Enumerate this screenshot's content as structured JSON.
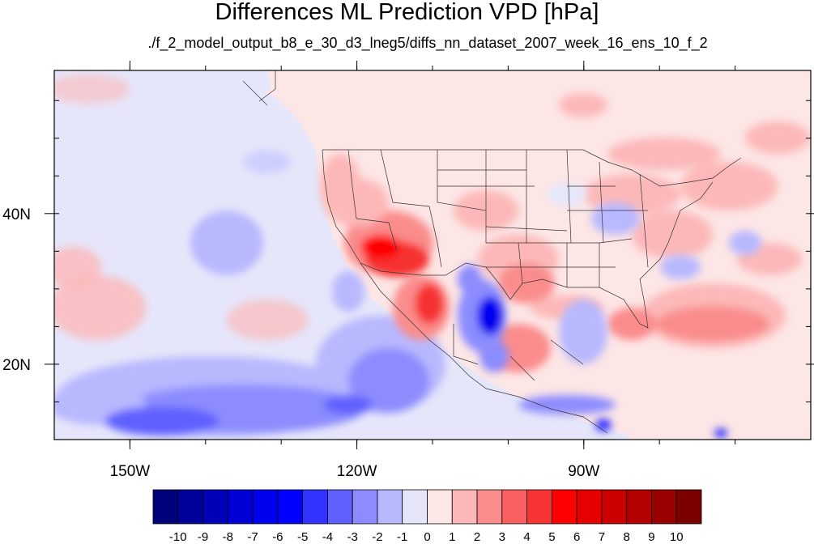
{
  "title": "Differences ML Prediction VPD [hPa]",
  "subtitle": "./f_2_model_output_b8_e_30_d3_lneg5/diffs_nn_dataset_2007_week_16_ens_10_f_2",
  "map": {
    "lon_range": [
      -160,
      -60
    ],
    "lat_range": [
      10,
      59
    ],
    "lon_ticks": [
      {
        "value": -150,
        "label": "150W"
      },
      {
        "value": -120,
        "label": "120W"
      },
      {
        "value": -90,
        "label": "90W"
      }
    ],
    "lat_ticks": [
      {
        "value": 40,
        "label": "40N"
      },
      {
        "value": 20,
        "label": "20N"
      }
    ],
    "background_color": "#fde6e6"
  },
  "colorbar": {
    "labels": [
      "-10",
      "-9",
      "-8",
      "-7",
      "-6",
      "-5",
      "-4",
      "-3",
      "-2",
      "-1",
      "0",
      "1",
      "2",
      "3",
      "4",
      "5",
      "6",
      "7",
      "8",
      "9",
      "10"
    ],
    "colors": [
      "#00007d",
      "#00009a",
      "#0000b8",
      "#0000d6",
      "#0000f0",
      "#0000ff",
      "#3333ff",
      "#6060ff",
      "#8c8cff",
      "#b8b8ff",
      "#e6e6fa",
      "#fde6e6",
      "#fcb8b8",
      "#fb8c8c",
      "#f96060",
      "#f73333",
      "#ff0000",
      "#e60000",
      "#cc0000",
      "#b30000",
      "#990000",
      "#7d0000"
    ]
  }
}
